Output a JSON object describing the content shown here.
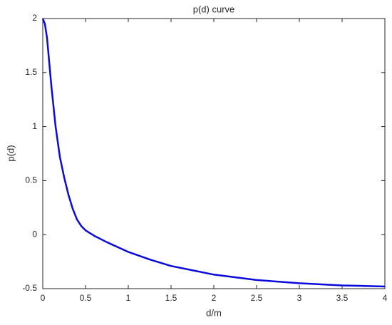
{
  "chart_data": {
    "type": "line",
    "title": "p(d) curve",
    "x_label": "d/m",
    "y_label": "p(d)",
    "x": [
      0,
      0.025,
      0.05,
      0.1,
      0.15,
      0.2,
      0.25,
      0.3,
      0.35,
      0.4,
      0.45,
      0.5,
      0.6,
      0.75,
      1,
      1.25,
      1.5,
      1.75,
      2,
      2.5,
      3,
      3.5,
      4
    ],
    "series": [
      {
        "name": "p(d)",
        "color": "#0a0adc",
        "values": [
          2,
          1.95,
          1.82,
          1.38,
          1.0,
          0.72,
          0.53,
          0.37,
          0.24,
          0.14,
          0.08,
          0.04,
          -0.01,
          -0.07,
          -0.16,
          -0.23,
          -0.29,
          -0.33,
          -0.37,
          -0.42,
          -0.45,
          -0.47,
          -0.48
        ]
      }
    ],
    "xlim": [
      0,
      4
    ],
    "xticks": [
      0,
      0.5,
      1,
      1.5,
      2,
      2.5,
      3,
      3.5,
      4
    ],
    "ylim": [
      -0.5,
      2
    ],
    "yticks": [
      -0.5,
      0,
      0.5,
      1,
      1.5,
      2
    ],
    "grid": false
  }
}
